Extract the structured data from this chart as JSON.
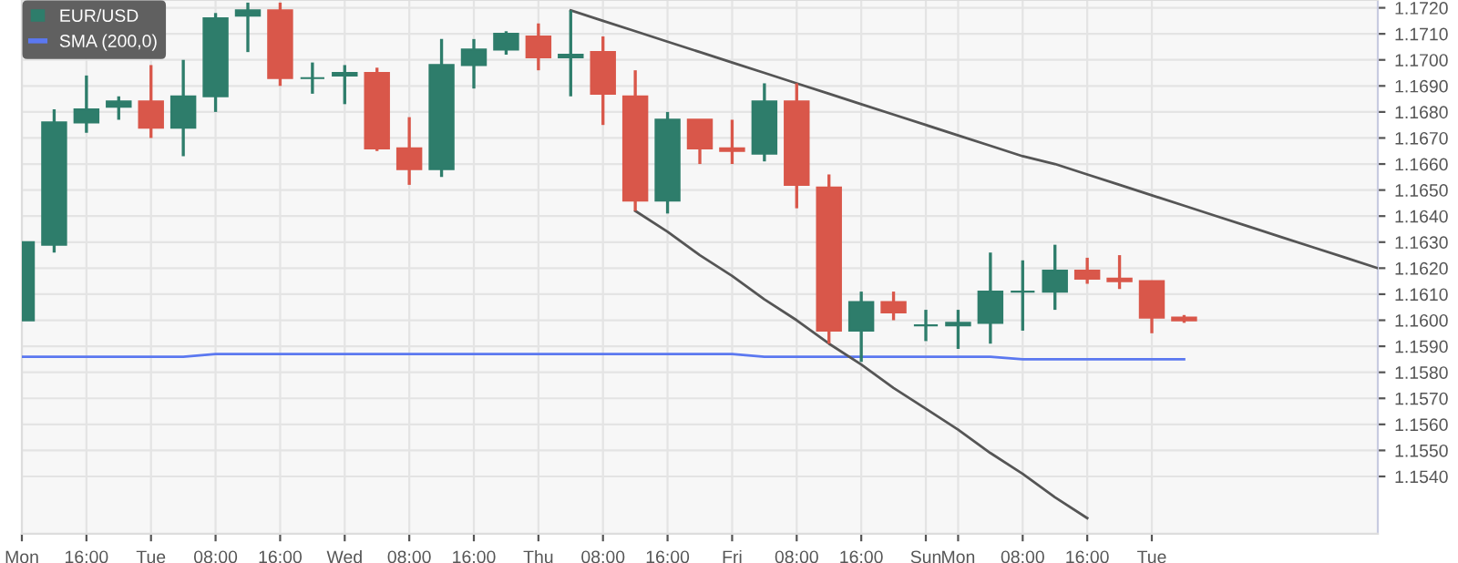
{
  "chart_data": {
    "type": "candlestick",
    "categories": [
      "Mon",
      null,
      "16:00",
      null,
      "Tue",
      null,
      "08:00",
      null,
      "16:00",
      null,
      "Wed",
      null,
      "08:00",
      null,
      "16:00",
      null,
      "Thu",
      null,
      "08:00",
      null,
      "16:00",
      null,
      "Fri",
      null,
      "08:00",
      null,
      "16:00",
      null,
      "Sun",
      "Mon",
      null,
      "08:00",
      null,
      "16:00",
      null,
      "Tue",
      null,
      null,
      null,
      null,
      null,
      null,
      null
    ],
    "series": [
      {
        "type": "candlestick",
        "name": "EUR/USD",
        "color": "#2e7d6b",
        "ohlc": [
          [
            1.16,
            1.163,
            1.16,
            1.163
          ],
          [
            1.1629,
            1.1681,
            1.1626,
            1.1676
          ],
          [
            1.1676,
            1.1694,
            1.1672,
            1.1681
          ],
          [
            1.1682,
            1.1686,
            1.1677,
            1.1684
          ],
          [
            1.1684,
            1.1698,
            1.167,
            1.1674
          ],
          [
            1.1674,
            1.17,
            1.1663,
            1.1686
          ],
          [
            1.1686,
            1.1718,
            1.168,
            1.1716
          ],
          [
            1.1717,
            1.1722,
            1.1703,
            1.1719
          ],
          [
            1.1719,
            1.1722,
            1.169,
            1.1693
          ],
          [
            1.1693,
            1.1699,
            1.1687,
            1.1693
          ],
          [
            1.1694,
            1.1698,
            1.1683,
            1.1695
          ],
          [
            1.1695,
            1.1697,
            1.1665,
            1.1666
          ],
          [
            1.1666,
            1.1678,
            1.1652,
            1.1658
          ],
          [
            1.1658,
            1.1708,
            1.1655,
            1.1698
          ],
          [
            1.1698,
            1.1708,
            1.1689,
            1.1704
          ],
          [
            1.1704,
            1.1711,
            1.1702,
            1.171
          ],
          [
            1.1709,
            1.1714,
            1.1696,
            1.1701
          ],
          [
            1.1701,
            1.1719,
            1.1686,
            1.1702
          ],
          [
            1.1703,
            1.1709,
            1.1675,
            1.1687
          ],
          [
            1.1686,
            1.1696,
            1.1642,
            1.1646
          ],
          [
            1.1646,
            1.168,
            1.1641,
            1.1677
          ],
          [
            1.1677,
            1.1677,
            1.166,
            1.1666
          ],
          [
            1.1666,
            1.1677,
            1.166,
            1.1665
          ],
          [
            1.1664,
            1.1691,
            1.1661,
            1.1684
          ],
          [
            1.1684,
            1.1691,
            1.1643,
            1.1652
          ],
          [
            1.1651,
            1.1656,
            1.1591,
            1.1596
          ],
          [
            1.1596,
            1.1611,
            1.1584,
            1.1607
          ],
          [
            1.1607,
            1.1611,
            1.16,
            1.1603
          ],
          [
            1.1598,
            1.1604,
            1.1592,
            1.1598
          ],
          [
            1.1598,
            1.1604,
            1.1589,
            1.1599
          ],
          [
            1.1599,
            1.1626,
            1.1591,
            1.1611
          ],
          [
            1.1611,
            1.1623,
            1.1596,
            1.1611
          ],
          [
            1.1611,
            1.1629,
            1.1604,
            1.1619
          ],
          [
            1.1619,
            1.1624,
            1.1614,
            1.1616
          ],
          [
            1.1616,
            1.1625,
            1.1612,
            1.1615
          ],
          [
            1.1615,
            1.1615,
            1.1595,
            1.1601
          ],
          [
            1.1601,
            1.1602,
            1.1599,
            1.16
          ],
          null,
          null,
          null,
          null,
          null,
          null
        ],
        "colors": [
          "#2e7d6b",
          "#2e7d6b",
          "#2e7d6b",
          "#2e7d6b",
          "#d9574a",
          "#2e7d6b",
          "#2e7d6b",
          "#2e7d6b",
          "#d9574a",
          "#2e7d6b",
          "#2e7d6b",
          "#d9574a",
          "#d9574a",
          "#2e7d6b",
          "#2e7d6b",
          "#2e7d6b",
          "#d9574a",
          "#2e7d6b",
          "#d9574a",
          "#d9574a",
          "#2e7d6b",
          "#d9574a",
          "#d9574a",
          "#2e7d6b",
          "#d9574a",
          "#d9574a",
          "#2e7d6b",
          "#d9574a",
          "#2e7d6b",
          "#2e7d6b",
          "#2e7d6b",
          "#2e7d6b",
          "#2e7d6b",
          "#d9574a",
          "#d9574a",
          "#d9574a",
          "#d9574a",
          null,
          null,
          null,
          null,
          null,
          null
        ]
      },
      {
        "type": "line",
        "name": "SMA (200,0)",
        "color": "#5b78f0",
        "values": [
          1.1586,
          1.1586,
          1.1586,
          1.1586,
          1.1586,
          1.1586,
          1.1587,
          1.1587,
          1.1587,
          1.1587,
          1.1587,
          1.1587,
          1.1587,
          1.1587,
          1.1587,
          1.1587,
          1.1587,
          1.1587,
          1.1587,
          1.1587,
          1.1587,
          1.1587,
          1.1587,
          1.1586,
          1.1586,
          1.1586,
          1.1586,
          1.1586,
          1.1586,
          1.1586,
          1.1586,
          1.1585,
          1.1585,
          1.1585,
          1.1585,
          1.1585,
          1.1585,
          null,
          null,
          null,
          null,
          null,
          null
        ]
      },
      {
        "type": "line",
        "color": "#555555",
        "values": [
          null,
          null,
          null,
          null,
          null,
          null,
          null,
          null,
          null,
          null,
          null,
          null,
          null,
          null,
          null,
          null,
          null,
          1.1719,
          1.1715,
          1.1711,
          1.1707,
          1.1703,
          1.1699,
          1.1695,
          1.1691,
          1.1687,
          1.1683,
          1.1679,
          1.1675,
          1.1671,
          1.1667,
          1.1663,
          1.166,
          1.1656,
          1.1652,
          1.1648,
          1.1644,
          1.164,
          1.1636,
          1.1632,
          1.1628,
          1.1624,
          1.162
        ]
      },
      {
        "type": "line",
        "color": "#555555",
        "values": [
          null,
          null,
          null,
          null,
          null,
          null,
          null,
          null,
          null,
          null,
          null,
          null,
          null,
          null,
          null,
          null,
          null,
          null,
          null,
          1.1642,
          1.1634,
          1.1625,
          1.1617,
          1.1608,
          1.16,
          1.1591,
          1.1583,
          1.1574,
          1.1566,
          1.1558,
          1.1549,
          1.1541,
          1.1532,
          1.1524,
          null,
          null,
          null,
          null,
          null,
          null,
          null,
          null,
          null
        ]
      }
    ],
    "ylim": [
      1.1518,
      1.1723
    ],
    "yticks": [
      {
        "value": 1.154,
        "label": "1.1540"
      },
      {
        "value": 1.155,
        "label": "1.1550"
      },
      {
        "value": 1.156,
        "label": "1.1560"
      },
      {
        "value": 1.157,
        "label": "1.1570"
      },
      {
        "value": 1.158,
        "label": "1.1580"
      },
      {
        "value": 1.159,
        "label": "1.1590"
      },
      {
        "value": 1.16,
        "label": "1.1600"
      },
      {
        "value": 1.161,
        "label": "1.1610"
      },
      {
        "value": 1.162,
        "label": "1.1620"
      },
      {
        "value": 1.163,
        "label": "1.1630"
      },
      {
        "value": 1.164,
        "label": "1.1640"
      },
      {
        "value": 1.165,
        "label": "1.1650"
      },
      {
        "value": 1.166,
        "label": "1.1660"
      },
      {
        "value": 1.167,
        "label": "1.1670"
      },
      {
        "value": 1.168,
        "label": "1.1680"
      },
      {
        "value": 1.169,
        "label": "1.1690"
      },
      {
        "value": 1.17,
        "label": "1.1700"
      },
      {
        "value": 1.171,
        "label": "1.1710"
      },
      {
        "value": 1.172,
        "label": "1.1720"
      }
    ],
    "grid": true,
    "legend": "top left"
  }
}
